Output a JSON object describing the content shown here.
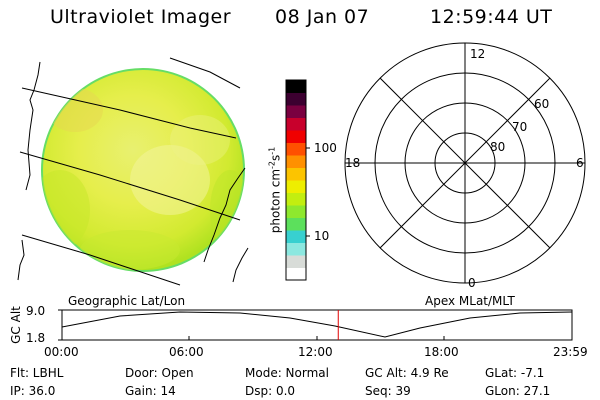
{
  "header": {
    "instrument": "Ultraviolet Imager",
    "date": "08 Jan 07",
    "time": "12:59:44 UT"
  },
  "left_panel": {
    "label": "Geographic Lat/Lon"
  },
  "right_panel": {
    "label": "Apex MLat/MLT",
    "mlt_labels": {
      "top": "12",
      "left": "18",
      "right": "6",
      "bottom": "0"
    },
    "lat_labels": [
      "60",
      "70",
      "80"
    ]
  },
  "colorbar": {
    "units_main": "photon cm",
    "units_sup1": "-2",
    "units_mid": "s",
    "units_sup2": "-1",
    "tick_labels": [
      "100",
      "10"
    ],
    "colors": [
      "#ffffff",
      "#d8dcd8",
      "#8ce8e0",
      "#38d0d0",
      "#5ce05c",
      "#8ee82e",
      "#c2ee10",
      "#eeee00",
      "#fcc400",
      "#ff9000",
      "#ff5000",
      "#f00000",
      "#c8002c",
      "#7a0040",
      "#3c0030",
      "#000000"
    ]
  },
  "altitude_plot": {
    "ylabel": "GC Alt",
    "yticks": [
      "9.0",
      "1.8"
    ],
    "xticks": [
      "00:00",
      "06:00",
      "12:00",
      "18:00",
      "23:59"
    ],
    "current_time_hours": 13.0
  },
  "footer": {
    "flt": "Flt: LBHL",
    "door": "Door: Open",
    "mode": "Mode: Normal",
    "gc_alt": "GC Alt: 4.9 Re",
    "glat": "GLat:  -7.1",
    "ip": "IP: 36.0",
    "gain": "Gain: 14",
    "dsp": "Dsp:    0.0",
    "seq": "Seq: 39",
    "glon": "GLon:  27.1"
  }
}
